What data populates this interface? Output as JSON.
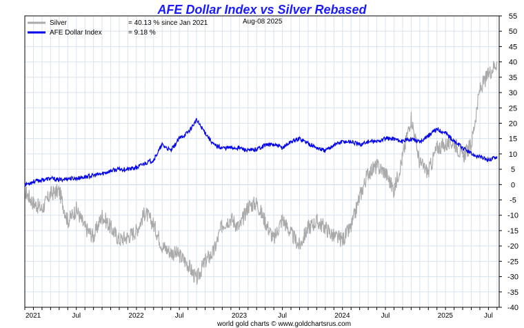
{
  "chart_data": {
    "type": "line",
    "title": "AFE Dollar Index vs Silver Rebased",
    "date_label": "Aug-08  2025",
    "footer": "world gold charts © www.goldchartsrus.com",
    "ylim": [
      -40,
      55
    ],
    "yticks": [
      55,
      50,
      45,
      40,
      35,
      30,
      25,
      20,
      15,
      10,
      5,
      0,
      -5,
      -10,
      -15,
      -20,
      -25,
      -30,
      -35,
      -40
    ],
    "x_range": [
      "2021-01",
      "2025-08"
    ],
    "xticks": [
      "2021",
      "Jul",
      "2022",
      "Jul",
      "2023",
      "Jul",
      "2024",
      "Jul",
      "2025",
      "Jul"
    ],
    "grid": true,
    "legend_position": "top-left",
    "series": [
      {
        "name": "Silver",
        "stat": "= 40.13 % since Jan 2021",
        "color": "#aaaaaa",
        "x": [
          "2021-01",
          "2021-02",
          "2021-03",
          "2021-04",
          "2021-05",
          "2021-06",
          "2021-07",
          "2021-08",
          "2021-09",
          "2021-10",
          "2021-11",
          "2021-12",
          "2022-01",
          "2022-02",
          "2022-03",
          "2022-04",
          "2022-05",
          "2022-06",
          "2022-07",
          "2022-08",
          "2022-09",
          "2022-10",
          "2022-11",
          "2022-12",
          "2023-01",
          "2023-02",
          "2023-03",
          "2023-04",
          "2023-05",
          "2023-06",
          "2023-07",
          "2023-08",
          "2023-09",
          "2023-10",
          "2023-11",
          "2023-12",
          "2024-01",
          "2024-02",
          "2024-03",
          "2024-04",
          "2024-05",
          "2024-06",
          "2024-07",
          "2024-08",
          "2024-09",
          "2024-10",
          "2024-11",
          "2024-12",
          "2025-01",
          "2025-02",
          "2025-03",
          "2025-04",
          "2025-05",
          "2025-06",
          "2025-07",
          "2025-08"
        ],
        "values": [
          -2,
          -6,
          -8,
          -3,
          -2,
          -12,
          -8,
          -14,
          -17,
          -10,
          -14,
          -18,
          -17,
          -15,
          -9,
          -13,
          -20,
          -22,
          -23,
          -26,
          -31,
          -25,
          -22,
          -13,
          -11,
          -14,
          -7,
          -6,
          -12,
          -18,
          -11,
          -16,
          -20,
          -14,
          -12,
          -14,
          -17,
          -18,
          -14,
          -4,
          4,
          6,
          4,
          -2,
          9,
          22,
          7,
          4,
          12,
          13,
          14,
          9,
          13,
          31,
          36,
          40.13
        ]
      },
      {
        "name": "AFE Dollar Index",
        "stat": "= 9.18 %",
        "color": "#0000ee",
        "x": [
          "2021-01",
          "2021-02",
          "2021-03",
          "2021-04",
          "2021-05",
          "2021-06",
          "2021-07",
          "2021-08",
          "2021-09",
          "2021-10",
          "2021-11",
          "2021-12",
          "2022-01",
          "2022-02",
          "2022-03",
          "2022-04",
          "2022-05",
          "2022-06",
          "2022-07",
          "2022-08",
          "2022-09",
          "2022-10",
          "2022-11",
          "2022-12",
          "2023-01",
          "2023-02",
          "2023-03",
          "2023-04",
          "2023-05",
          "2023-06",
          "2023-07",
          "2023-08",
          "2023-09",
          "2023-10",
          "2023-11",
          "2023-12",
          "2024-01",
          "2024-02",
          "2024-03",
          "2024-04",
          "2024-05",
          "2024-06",
          "2024-07",
          "2024-08",
          "2024-09",
          "2024-10",
          "2024-11",
          "2024-12",
          "2025-01",
          "2025-02",
          "2025-03",
          "2025-04",
          "2025-05",
          "2025-06",
          "2025-07",
          "2025-08"
        ],
        "values": [
          0,
          1,
          1.5,
          2,
          1.5,
          2,
          2,
          2.5,
          3,
          3.5,
          4.5,
          5,
          5,
          5.5,
          7,
          8,
          13,
          11,
          15,
          17,
          21,
          17,
          13,
          12,
          12,
          12,
          11,
          11.5,
          13,
          13,
          12,
          14,
          15,
          13.5,
          12,
          11,
          13,
          14,
          14,
          13,
          14,
          14,
          15,
          15,
          14,
          15,
          14,
          16,
          18,
          17,
          14,
          12,
          10,
          9,
          8,
          9.18
        ]
      }
    ]
  }
}
